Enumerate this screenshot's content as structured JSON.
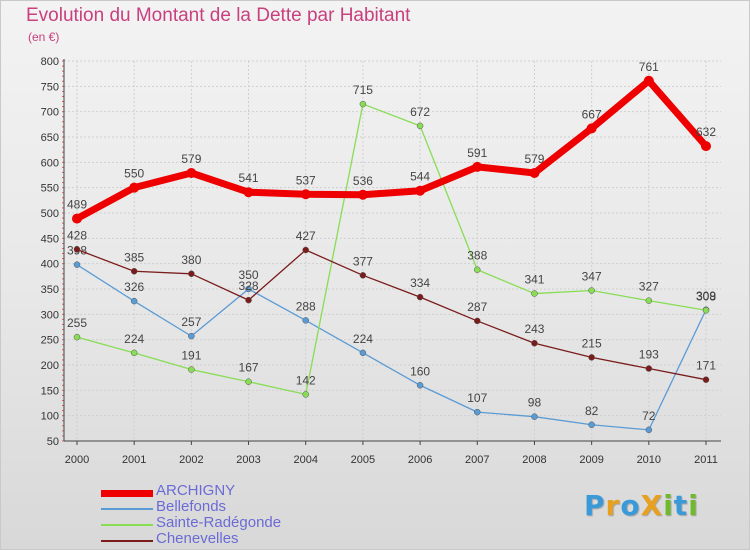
{
  "header": {
    "title": "Evolution du Montant de la Dette par Habitant",
    "subtitle": "(en €)"
  },
  "logo": {
    "text": "ProXiti",
    "letters": [
      "P",
      "r",
      "o",
      "X",
      "i",
      "t",
      "i"
    ],
    "colors": [
      "#3a9ad9",
      "#e8a020",
      "#3a9ad9",
      "#e8a020",
      "#6fba2c",
      "#3a9ad9",
      "#6fba2c"
    ]
  },
  "chart_data": {
    "type": "line",
    "categories": [
      "2000",
      "2001",
      "2002",
      "2003",
      "2004",
      "2005",
      "2006",
      "2007",
      "2008",
      "2009",
      "2010",
      "2011"
    ],
    "ylim": [
      50,
      800
    ],
    "yticks": [
      50,
      100,
      150,
      200,
      250,
      300,
      350,
      400,
      450,
      500,
      550,
      600,
      650,
      700,
      750,
      800
    ],
    "grid": true,
    "legend_position": "bottom-left",
    "series": [
      {
        "name": "ARCHIGNY",
        "color": "#ee0000",
        "width": 7,
        "values": [
          489,
          550,
          579,
          541,
          537,
          536,
          544,
          591,
          579,
          667,
          761,
          632
        ]
      },
      {
        "name": "Bellefonds",
        "color": "#5b9bd5",
        "width": 1.3,
        "values": [
          398,
          326,
          257,
          350,
          288,
          224,
          160,
          107,
          98,
          82,
          72,
          309
        ]
      },
      {
        "name": "Sainte-Radégonde",
        "color": "#88dd55",
        "width": 1.3,
        "values": [
          255,
          224,
          191,
          167,
          142,
          715,
          672,
          388,
          341,
          347,
          327,
          308
        ]
      },
      {
        "name": "Chenevelles",
        "color": "#7a1c1c",
        "width": 1.3,
        "values": [
          428,
          385,
          380,
          328,
          427,
          377,
          334,
          287,
          243,
          215,
          193,
          171
        ]
      }
    ]
  }
}
